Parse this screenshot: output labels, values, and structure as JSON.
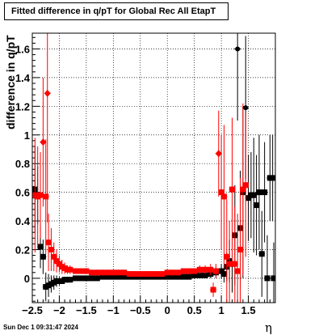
{
  "title": "Fitted difference in q/pT for Global Rec All EtapT",
  "footer_date": "Sun Dec  1 09:31:47 2024",
  "chart_data": {
    "type": "scatter",
    "title": "Fitted difference in q/pT for Global Rec All EtapT",
    "xlabel": "η",
    "ylabel": "difference in q/pT",
    "xlim": [
      -2.5,
      2.0
    ],
    "ylim": [
      -0.17,
      1.71
    ],
    "x_ticks": [
      -2.5,
      -2,
      -1.5,
      -1,
      -0.5,
      0,
      0.5,
      1,
      1.5
    ],
    "x_tick_labels": [
      "−2.5",
      "−2",
      "−1.5",
      "−1",
      "−0.5",
      "0",
      "0.5",
      "1",
      "1.5"
    ],
    "y_ticks": [
      0,
      0.2,
      0.4,
      0.6,
      0.8,
      1,
      1.2,
      1.4,
      1.6
    ],
    "y_tick_labels": [
      "0",
      "0.2",
      "0.4",
      "0.6",
      "0.8",
      "1",
      "1.2",
      "1.4",
      "1.6"
    ],
    "grid": true,
    "series": [
      {
        "color": "#000000",
        "marker": "square",
        "points": [
          {
            "x": -2.45,
            "y": 0.62,
            "err": 0.3
          },
          {
            "x": -2.4,
            "y": 0.58,
            "err": 0.2
          },
          {
            "x": -2.35,
            "y": 0.22,
            "err": 0.15
          },
          {
            "x": -2.3,
            "y": 0.15,
            "err": 0.12
          },
          {
            "x": -2.25,
            "y": -0.06,
            "err": 0.1
          },
          {
            "x": -2.2,
            "y": -0.05,
            "err": 0.08
          },
          {
            "x": -2.15,
            "y": -0.04,
            "err": 0.06
          },
          {
            "x": -2.1,
            "y": -0.03,
            "err": 0.05
          },
          {
            "x": -2.05,
            "y": -0.02,
            "err": 0.04
          },
          {
            "x": -2.0,
            "y": -0.02,
            "err": 0.03
          },
          {
            "x": -1.95,
            "y": -0.02,
            "err": 0.02
          },
          {
            "x": -1.9,
            "y": -0.01,
            "err": 0.02
          },
          {
            "x": -1.85,
            "y": -0.01,
            "err": 0.02
          },
          {
            "x": -1.8,
            "y": -0.01,
            "err": 0.01
          },
          {
            "x": -1.7,
            "y": 0.0,
            "err": 0.01
          },
          {
            "x": -1.6,
            "y": 0.0,
            "err": 0.01
          },
          {
            "x": -1.5,
            "y": 0.0,
            "err": 0.01
          },
          {
            "x": -1.4,
            "y": 0.0,
            "err": 0.01
          },
          {
            "x": -1.3,
            "y": 0.0,
            "err": 0.01
          },
          {
            "x": -1.2,
            "y": 0.01,
            "err": 0.01
          },
          {
            "x": -1.1,
            "y": 0.01,
            "err": 0.01
          },
          {
            "x": -1.0,
            "y": 0.01,
            "err": 0.01
          },
          {
            "x": -0.9,
            "y": 0.01,
            "err": 0.01
          },
          {
            "x": -0.8,
            "y": 0.01,
            "err": 0.01
          },
          {
            "x": -0.7,
            "y": 0.01,
            "err": 0.01
          },
          {
            "x": -0.6,
            "y": 0.01,
            "err": 0.01
          },
          {
            "x": -0.5,
            "y": 0.01,
            "err": 0.01
          },
          {
            "x": -0.4,
            "y": 0.01,
            "err": 0.01
          },
          {
            "x": -0.3,
            "y": 0.01,
            "err": 0.01
          },
          {
            "x": -0.2,
            "y": 0.01,
            "err": 0.01
          },
          {
            "x": -0.1,
            "y": 0.01,
            "err": 0.01
          },
          {
            "x": 0.0,
            "y": 0.01,
            "err": 0.01
          },
          {
            "x": 0.1,
            "y": 0.01,
            "err": 0.01
          },
          {
            "x": 0.2,
            "y": 0.01,
            "err": 0.01
          },
          {
            "x": 0.3,
            "y": 0.01,
            "err": 0.01
          },
          {
            "x": 0.4,
            "y": 0.01,
            "err": 0.01
          },
          {
            "x": 0.5,
            "y": 0.02,
            "err": 0.01
          },
          {
            "x": 0.6,
            "y": 0.02,
            "err": 0.01
          },
          {
            "x": 0.7,
            "y": 0.02,
            "err": 0.02
          },
          {
            "x": 0.8,
            "y": 0.03,
            "err": 0.03
          },
          {
            "x": 0.9,
            "y": 0.04,
            "err": 0.04
          },
          {
            "x": 1.0,
            "y": 0.05,
            "err": 0.05
          },
          {
            "x": 1.05,
            "y": 0.03,
            "err": 0.06
          },
          {
            "x": 1.1,
            "y": 0.08,
            "err": 0.1
          },
          {
            "x": 1.15,
            "y": 0.12,
            "err": 0.15
          },
          {
            "x": 1.2,
            "y": 0.1,
            "err": 0.2
          },
          {
            "x": 1.25,
            "y": 0.3,
            "err": 0.35
          },
          {
            "x": 1.3,
            "y": 1.6,
            "err": 0.5
          },
          {
            "x": 1.35,
            "y": 0.35,
            "err": 0.4
          },
          {
            "x": 1.4,
            "y": 0.6,
            "err": 0.6
          },
          {
            "x": 1.45,
            "y": 1.19,
            "err": 0.5
          },
          {
            "x": 1.5,
            "y": 0.56,
            "err": 0.3
          },
          {
            "x": 1.55,
            "y": 0.58,
            "err": 0.3
          },
          {
            "x": 1.6,
            "y": 0.58,
            "err": 0.4
          },
          {
            "x": 1.65,
            "y": 0.51,
            "err": 0.35
          },
          {
            "x": 1.7,
            "y": 0.6,
            "err": 0.4
          },
          {
            "x": 1.75,
            "y": 0.17,
            "err": 0.3
          },
          {
            "x": 1.8,
            "y": 0.6,
            "err": 0.35
          },
          {
            "x": 1.85,
            "y": 0.0,
            "err": 0.3
          },
          {
            "x": 1.9,
            "y": 0.7,
            "err": 0.3
          },
          {
            "x": 1.95,
            "y": 0.7,
            "err": 0.3
          },
          {
            "x": 1.97,
            "y": 0.0,
            "err": 0.25
          }
        ]
      },
      {
        "color": "#ff0000",
        "marker": "square",
        "points": [
          {
            "x": -2.45,
            "y": 0.58,
            "err": 0.4
          },
          {
            "x": -2.4,
            "y": 0.57,
            "err": 0.35
          },
          {
            "x": -2.35,
            "y": 0.58,
            "err": 0.3
          },
          {
            "x": -2.3,
            "y": 0.95,
            "err": 0.45
          },
          {
            "x": -2.25,
            "y": 0.57,
            "err": 0.4
          },
          {
            "x": -2.22,
            "y": 1.29,
            "err": 0.9
          },
          {
            "x": -2.2,
            "y": 0.25,
            "err": 0.2
          },
          {
            "x": -2.15,
            "y": 0.2,
            "err": 0.15
          },
          {
            "x": -2.1,
            "y": 0.15,
            "err": 0.1
          },
          {
            "x": -2.05,
            "y": 0.12,
            "err": 0.08
          },
          {
            "x": -2.0,
            "y": 0.1,
            "err": 0.06
          },
          {
            "x": -1.95,
            "y": 0.08,
            "err": 0.05
          },
          {
            "x": -1.9,
            "y": 0.07,
            "err": 0.04
          },
          {
            "x": -1.85,
            "y": 0.06,
            "err": 0.03
          },
          {
            "x": -1.8,
            "y": 0.06,
            "err": 0.03
          },
          {
            "x": -1.7,
            "y": 0.05,
            "err": 0.02
          },
          {
            "x": -1.6,
            "y": 0.05,
            "err": 0.02
          },
          {
            "x": -1.5,
            "y": 0.05,
            "err": 0.02
          },
          {
            "x": -1.4,
            "y": 0.04,
            "err": 0.02
          },
          {
            "x": -1.3,
            "y": 0.04,
            "err": 0.02
          },
          {
            "x": -1.2,
            "y": 0.04,
            "err": 0.02
          },
          {
            "x": -1.1,
            "y": 0.04,
            "err": 0.02
          },
          {
            "x": -1.0,
            "y": 0.04,
            "err": 0.02
          },
          {
            "x": -0.9,
            "y": 0.04,
            "err": 0.02
          },
          {
            "x": -0.8,
            "y": 0.04,
            "err": 0.02
          },
          {
            "x": -0.7,
            "y": 0.03,
            "err": 0.02
          },
          {
            "x": -0.6,
            "y": 0.03,
            "err": 0.02
          },
          {
            "x": -0.5,
            "y": 0.03,
            "err": 0.02
          },
          {
            "x": -0.4,
            "y": 0.03,
            "err": 0.02
          },
          {
            "x": -0.3,
            "y": 0.03,
            "err": 0.02
          },
          {
            "x": -0.2,
            "y": 0.03,
            "err": 0.02
          },
          {
            "x": -0.1,
            "y": 0.03,
            "err": 0.02
          },
          {
            "x": 0.0,
            "y": 0.04,
            "err": 0.02
          },
          {
            "x": 0.1,
            "y": 0.04,
            "err": 0.02
          },
          {
            "x": 0.2,
            "y": 0.04,
            "err": 0.02
          },
          {
            "x": 0.3,
            "y": 0.05,
            "err": 0.02
          },
          {
            "x": 0.4,
            "y": 0.05,
            "err": 0.02
          },
          {
            "x": 0.5,
            "y": 0.05,
            "err": 0.02
          },
          {
            "x": 0.6,
            "y": 0.06,
            "err": 0.03
          },
          {
            "x": 0.7,
            "y": 0.06,
            "err": 0.03
          },
          {
            "x": 0.8,
            "y": 0.06,
            "err": 0.04
          },
          {
            "x": 0.85,
            "y": -0.08,
            "err": 0.05
          },
          {
            "x": 0.9,
            "y": 0.05,
            "err": 0.05
          },
          {
            "x": 0.95,
            "y": 0.87,
            "err": 0.3
          },
          {
            "x": 1.0,
            "y": 0.6,
            "err": 0.4
          },
          {
            "x": 1.05,
            "y": 0.57,
            "err": 0.5
          },
          {
            "x": 1.1,
            "y": 0.15,
            "err": 0.4
          },
          {
            "x": 1.15,
            "y": 0.1,
            "err": 0.3
          },
          {
            "x": 1.2,
            "y": 0.62,
            "err": 0.5
          },
          {
            "x": 1.25,
            "y": 0.1,
            "err": 0.4
          },
          {
            "x": 1.3,
            "y": 0.05,
            "err": 0.4
          },
          {
            "x": 1.35,
            "y": 0.2,
            "err": 0.5
          },
          {
            "x": 1.4,
            "y": 0.62,
            "err": 0.6
          },
          {
            "x": 1.45,
            "y": 0.65,
            "err": 0.5
          }
        ]
      }
    ]
  }
}
